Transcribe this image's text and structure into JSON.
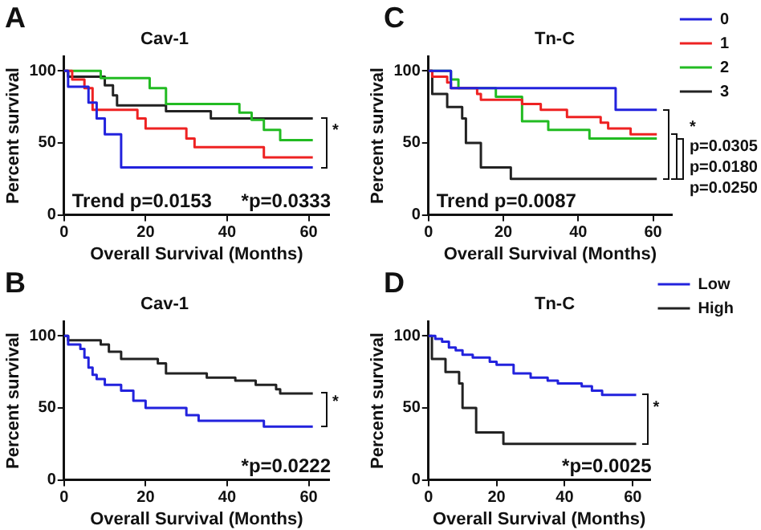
{
  "chart_data": [
    {
      "type": "step",
      "title": "Cav-1",
      "xlabel": "Overall Survival (Months)",
      "ylabel": "Percent survival",
      "xlim": [
        0,
        65
      ],
      "xticks": [
        0,
        20,
        40,
        60
      ],
      "ylim": [
        0,
        110
      ],
      "yticks": [
        0,
        50,
        100
      ],
      "grid": false,
      "legend": false,
      "annotations": [
        "A",
        "Trend p=0.0153",
        "*p=0.0333",
        "*"
      ],
      "series": [
        {
          "color": "#2222dd",
          "x": [
            0,
            1,
            6,
            8,
            10,
            14,
            61
          ],
          "values": [
            100,
            89,
            78,
            67,
            56,
            33,
            33
          ]
        },
        {
          "color": "#ee2222",
          "x": [
            0,
            2,
            5,
            7,
            18,
            20,
            30,
            32,
            49,
            61
          ],
          "values": [
            100,
            94,
            88,
            73,
            67,
            60,
            53,
            47,
            40,
            40
          ]
        },
        {
          "color": "#22bb22",
          "x": [
            0,
            9,
            21,
            25,
            43,
            46,
            49,
            53,
            61
          ],
          "values": [
            100,
            95,
            88,
            77,
            71,
            66,
            59,
            52,
            52
          ]
        },
        {
          "color": "#222222",
          "x": [
            0,
            1,
            10,
            12,
            13,
            25,
            36,
            61
          ],
          "values": [
            100,
            96,
            90,
            83,
            76,
            72,
            67,
            67
          ]
        }
      ]
    },
    {
      "type": "step",
      "title": "Tn-C",
      "xlabel": "Overall Survival (Months)",
      "ylabel": "Percent survival",
      "xlim": [
        0,
        65
      ],
      "xticks": [
        0,
        20,
        40,
        60
      ],
      "ylim": [
        0,
        110
      ],
      "yticks": [
        0,
        50,
        100
      ],
      "grid": false,
      "legend": "top right",
      "annotations": [
        "C",
        "*",
        "p=0.0305",
        "p=0.0180",
        "p=0.0250",
        "Trend p=0.0087"
      ],
      "series": [
        {
          "name": "0",
          "color": "#2222dd",
          "x": [
            0,
            6,
            50,
            61
          ],
          "values": [
            100,
            88,
            73,
            73
          ]
        },
        {
          "name": "1",
          "color": "#ee2222",
          "x": [
            0,
            1,
            5,
            6,
            13,
            14,
            25,
            30,
            37,
            46,
            48,
            54,
            61
          ],
          "values": [
            100,
            96,
            92,
            88,
            84,
            80,
            77,
            73,
            68,
            64,
            60,
            56,
            56
          ]
        },
        {
          "name": "2",
          "color": "#22bb22",
          "x": [
            0,
            6,
            8,
            18,
            25,
            32,
            43,
            61
          ],
          "values": [
            100,
            94,
            88,
            82,
            65,
            59,
            53,
            53
          ]
        },
        {
          "name": "3",
          "color": "#222222",
          "x": [
            0,
            1,
            5,
            9,
            10,
            14,
            22,
            61
          ],
          "values": [
            100,
            84,
            75,
            67,
            50,
            33,
            25,
            25
          ]
        }
      ]
    },
    {
      "type": "step",
      "title": "Cav-1",
      "xlabel": "Overall Survival (Months)",
      "ylabel": "Percent survival",
      "xlim": [
        0,
        65
      ],
      "xticks": [
        0,
        20,
        40,
        60
      ],
      "ylim": [
        0,
        110
      ],
      "yticks": [
        0,
        50,
        100
      ],
      "grid": false,
      "legend": false,
      "annotations": [
        "B",
        "*p=0.0222",
        "*"
      ],
      "series": [
        {
          "color": "#2222dd",
          "x": [
            0,
            1,
            4,
            5,
            6,
            7,
            8,
            10,
            14,
            17,
            20,
            30,
            33,
            49,
            61
          ],
          "values": [
            100,
            94,
            91,
            85,
            78,
            73,
            70,
            66,
            62,
            55,
            50,
            45,
            41,
            37,
            37
          ]
        },
        {
          "color": "#222222",
          "x": [
            0,
            1,
            9,
            11,
            14,
            23,
            25,
            35,
            42,
            47,
            52,
            53,
            61
          ],
          "values": [
            100,
            97,
            94,
            89,
            84,
            81,
            74,
            71,
            69,
            66,
            63,
            60,
            60
          ]
        }
      ]
    },
    {
      "type": "step",
      "title": "Tn-C",
      "xlabel": "Overall Survival (Months)",
      "ylabel": "Percent survival",
      "xlim": [
        0,
        65
      ],
      "xticks": [
        0,
        20,
        40,
        60
      ],
      "ylim": [
        0,
        110
      ],
      "yticks": [
        0,
        50,
        100
      ],
      "grid": false,
      "legend": "top right",
      "annotations": [
        "D",
        "*p=0.0025",
        "*"
      ],
      "series": [
        {
          "name": "Low",
          "color": "#2222dd",
          "x": [
            0,
            2,
            4,
            6,
            8,
            10,
            13,
            18,
            20,
            25,
            30,
            35,
            38,
            45,
            48,
            51,
            61
          ],
          "values": [
            100,
            98,
            96,
            92,
            90,
            87,
            85,
            82,
            80,
            74,
            71,
            69,
            67,
            65,
            62,
            59,
            59
          ]
        },
        {
          "name": "High",
          "color": "#222222",
          "x": [
            0,
            1,
            5,
            9,
            10,
            14,
            22,
            61
          ],
          "values": [
            100,
            84,
            75,
            67,
            50,
            33,
            25,
            25
          ]
        }
      ]
    }
  ]
}
